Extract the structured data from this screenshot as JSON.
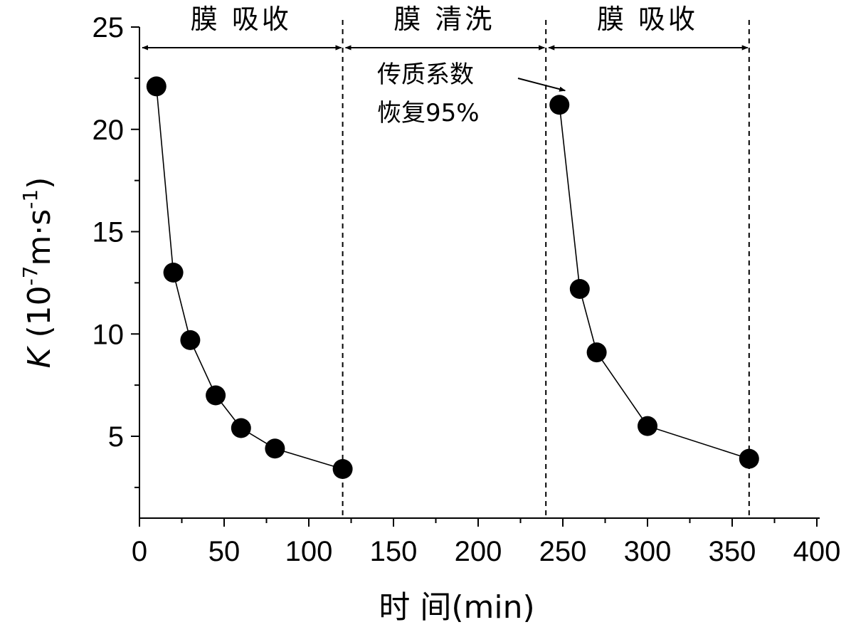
{
  "chart_data": {
    "type": "scatter",
    "title": "",
    "xlabel": "时  间(min)",
    "ylabel": {
      "symbol": "K",
      "open": " (10",
      "exp1": "-7",
      "mid": "m·s",
      "exp2": "-1",
      "close": ")"
    },
    "xlim": [
      0,
      400
    ],
    "ylim": [
      1,
      25
    ],
    "x_ticks": [
      0,
      50,
      100,
      150,
      200,
      250,
      300,
      350,
      400
    ],
    "y_ticks": [
      5,
      10,
      15,
      20,
      25
    ],
    "grid": false,
    "series": [
      {
        "x": [
          10,
          20,
          30,
          45,
          60,
          80,
          120
        ],
        "y": [
          22.1,
          13.0,
          9.7,
          7.0,
          5.4,
          4.4,
          3.4
        ]
      },
      {
        "x": [
          248,
          260,
          270,
          300,
          360
        ],
        "y": [
          21.2,
          12.2,
          9.1,
          5.5,
          3.9
        ]
      }
    ],
    "phase_boundaries": [
      120,
      240,
      360
    ],
    "phases": [
      {
        "label": "膜 吸收",
        "start": 0,
        "end": 120
      },
      {
        "label": "膜 清洗",
        "start": 120,
        "end": 240
      },
      {
        "label": "膜 吸收",
        "start": 240,
        "end": 360
      }
    ],
    "annotation": {
      "lines": [
        "传质系数",
        "恢复95%"
      ],
      "target": {
        "x": 248,
        "y": 21.2
      }
    }
  }
}
